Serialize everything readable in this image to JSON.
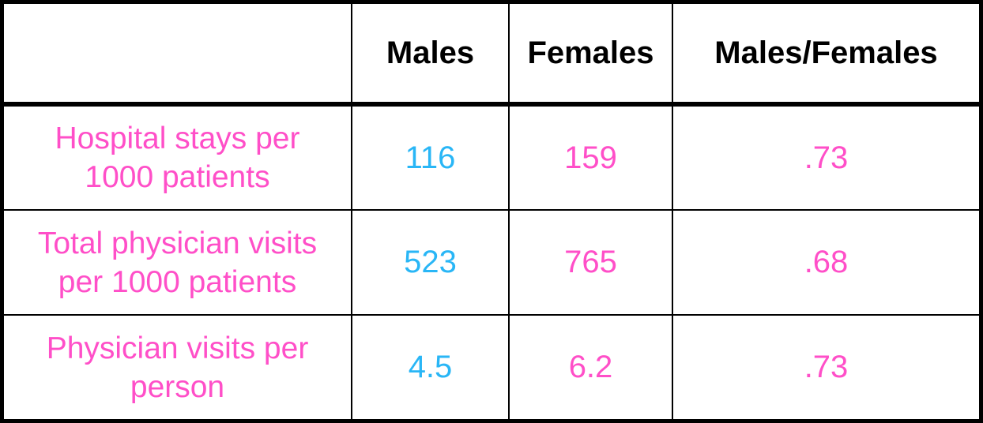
{
  "colors": {
    "label_pink": "#ff4fc8",
    "value_blue": "#29b6f6",
    "border": "#000000"
  },
  "table": {
    "corner": "",
    "headers": [
      "Males",
      "Females",
      "Males/Females"
    ],
    "rows": [
      {
        "label_line1": "Hospital stays per",
        "label_line2": "1000 patients",
        "males": "116",
        "females": "159",
        "ratio": ".73"
      },
      {
        "label_line1": "Total physician visits",
        "label_line2": "per 1000 patients",
        "males": "523",
        "females": "765",
        "ratio": ".68"
      },
      {
        "label_line1": "Physician visits per",
        "label_line2": "person",
        "males": "4.5",
        "females": "6.2",
        "ratio": ".73"
      }
    ]
  }
}
